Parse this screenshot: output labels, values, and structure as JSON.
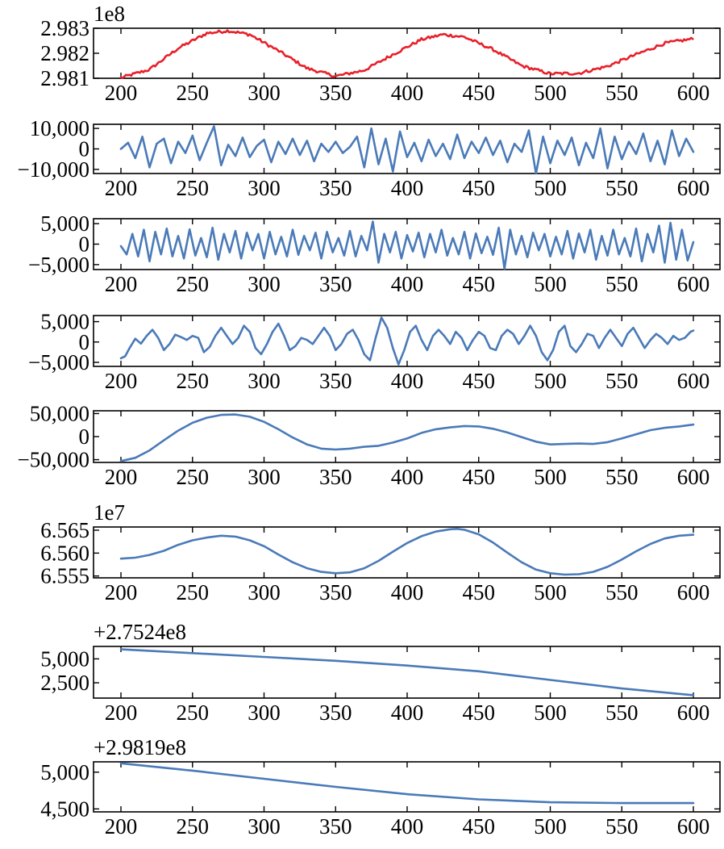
{
  "chart_data": [
    {
      "type": "line",
      "color": "#e8202a",
      "offset_text": "1e8",
      "xlim": [
        200,
        600
      ],
      "ylim": [
        2.981,
        2.983
      ],
      "xticks": [
        200,
        250,
        300,
        350,
        400,
        450,
        500,
        550,
        600
      ],
      "xtick_labels": [
        "200",
        "250",
        "300",
        "350",
        "400",
        "450",
        "500",
        "550",
        "600"
      ],
      "yticks": [
        2.981,
        2.982,
        2.983
      ],
      "ytick_labels": [
        "2.981",
        "2.982",
        "2.983"
      ],
      "noise": 6e-05,
      "x": [
        200,
        220,
        240,
        260,
        275,
        290,
        310,
        330,
        350,
        370,
        390,
        410,
        425,
        440,
        460,
        480,
        500,
        520,
        540,
        560,
        580,
        600
      ],
      "y": [
        2.98102,
        2.98135,
        2.9822,
        2.9828,
        2.9829,
        2.98275,
        2.9821,
        2.9814,
        2.98108,
        2.98132,
        2.98195,
        2.98255,
        2.98275,
        2.98265,
        2.98215,
        2.9815,
        2.98118,
        2.9812,
        2.98148,
        2.98195,
        2.9824,
        2.98258
      ]
    },
    {
      "type": "line",
      "color": "#4a7ab8",
      "offset_text": "",
      "xlim": [
        200,
        600
      ],
      "ylim": [
        -12000,
        12000
      ],
      "xticks": [
        200,
        250,
        300,
        350,
        400,
        450,
        500,
        550,
        600
      ],
      "xtick_labels": [
        "200",
        "250",
        "300",
        "350",
        "400",
        "450",
        "500",
        "550",
        "600"
      ],
      "yticks": [
        -10000,
        0,
        10000
      ],
      "ytick_labels": [
        "−10,000",
        "0",
        "10,000"
      ],
      "x": [
        200,
        205,
        210,
        215,
        220,
        225,
        230,
        235,
        240,
        245,
        250,
        255,
        260,
        265,
        270,
        275,
        280,
        285,
        290,
        295,
        300,
        305,
        310,
        315,
        320,
        325,
        330,
        335,
        340,
        345,
        350,
        355,
        360,
        365,
        370,
        375,
        380,
        385,
        390,
        395,
        400,
        405,
        410,
        415,
        420,
        425,
        430,
        435,
        440,
        445,
        450,
        455,
        460,
        465,
        470,
        475,
        480,
        485,
        490,
        495,
        500,
        505,
        510,
        515,
        520,
        525,
        530,
        535,
        540,
        545,
        550,
        555,
        560,
        565,
        570,
        575,
        580,
        585,
        590,
        595,
        600
      ],
      "y": [
        0,
        3000,
        -4500,
        6000,
        -9000,
        2500,
        5000,
        -7000,
        3500,
        -2000,
        6500,
        -5500,
        3000,
        11000,
        -8000,
        2000,
        -3500,
        5500,
        -4000,
        1500,
        4500,
        -6500,
        3500,
        -2500,
        5000,
        -3000,
        4000,
        -6000,
        2500,
        -1500,
        3500,
        -2000,
        1000,
        6000,
        -9000,
        10000,
        -7500,
        5000,
        -11000,
        8500,
        -4000,
        3000,
        -6000,
        4500,
        -3500,
        2500,
        -5000,
        7000,
        -4500,
        3500,
        -2000,
        5500,
        -3000,
        4000,
        -6500,
        2500,
        -1500,
        9000,
        -12000,
        6000,
        -7000,
        4000,
        -3000,
        5500,
        -8000,
        3000,
        -4500,
        10000,
        -9500,
        6000,
        -5000,
        3500,
        -2500,
        7500,
        -6000,
        4000,
        -7500,
        9000,
        -3500,
        5000,
        -1500
      ]
    },
    {
      "type": "line",
      "color": "#4a7ab8",
      "offset_text": "",
      "xlim": [
        200,
        600
      ],
      "ylim": [
        -6200,
        6200
      ],
      "xticks": [
        200,
        250,
        300,
        350,
        400,
        450,
        500,
        550,
        600
      ],
      "xtick_labels": [
        "200",
        "250",
        "300",
        "350",
        "400",
        "450",
        "500",
        "550",
        "600"
      ],
      "yticks": [
        -5000,
        0,
        5000
      ],
      "ytick_labels": [
        "−5,000",
        "0",
        "5,000"
      ],
      "x": [
        200,
        204,
        208,
        212,
        216,
        220,
        224,
        228,
        232,
        236,
        240,
        244,
        248,
        252,
        256,
        260,
        264,
        268,
        272,
        276,
        280,
        284,
        288,
        292,
        296,
        300,
        304,
        308,
        312,
        316,
        320,
        324,
        328,
        332,
        336,
        340,
        344,
        348,
        352,
        356,
        360,
        364,
        368,
        372,
        376,
        380,
        384,
        388,
        392,
        396,
        400,
        404,
        408,
        412,
        416,
        420,
        424,
        428,
        432,
        436,
        440,
        444,
        448,
        452,
        456,
        460,
        464,
        468,
        472,
        476,
        480,
        484,
        488,
        492,
        496,
        500,
        504,
        508,
        512,
        516,
        520,
        524,
        528,
        532,
        536,
        540,
        544,
        548,
        552,
        556,
        560,
        564,
        568,
        572,
        576,
        580,
        584,
        588,
        592,
        596,
        600
      ],
      "y": [
        -500,
        -2500,
        2500,
        -3000,
        3500,
        -4200,
        3000,
        -2500,
        3800,
        -3000,
        2000,
        -3500,
        3600,
        -2800,
        1500,
        -3200,
        4000,
        -3800,
        2500,
        -2000,
        3200,
        -3500,
        2800,
        -1500,
        2500,
        -3500,
        3000,
        -2500,
        1800,
        -3000,
        3500,
        -2600,
        2000,
        -1500,
        2800,
        -3500,
        3000,
        -2000,
        1500,
        -2800,
        3200,
        -3000,
        2000,
        -1500,
        5500,
        -4500,
        2500,
        -2000,
        3000,
        -3500,
        2200,
        -1800,
        2800,
        -3200,
        2500,
        -2000,
        3500,
        -2800,
        1500,
        -2500,
        3000,
        -3500,
        2600,
        -2200,
        1800,
        -2600,
        4000,
        -6000,
        3500,
        -2500,
        2000,
        -3200,
        2800,
        -1500,
        2500,
        -3000,
        1800,
        -2500,
        3200,
        -3500,
        2600,
        -2000,
        3500,
        -3800,
        2000,
        -2800,
        3500,
        -2500,
        1500,
        -3000,
        3800,
        -4200,
        2500,
        -2000,
        4500,
        -4500,
        5200,
        -3800,
        3500,
        -4000,
        500
      ]
    },
    {
      "type": "line",
      "color": "#4a7ab8",
      "offset_text": "",
      "xlim": [
        200,
        600
      ],
      "ylim": [
        -6000,
        6500
      ],
      "xticks": [
        200,
        250,
        300,
        350,
        400,
        450,
        500,
        550,
        600
      ],
      "xtick_labels": [
        "200",
        "250",
        "300",
        "350",
        "400",
        "450",
        "500",
        "550",
        "600"
      ],
      "yticks": [
        -5000,
        0,
        5000
      ],
      "ytick_labels": [
        "−5,000",
        "0",
        "5,000"
      ],
      "x": [
        200,
        203,
        206,
        210,
        214,
        218,
        222,
        226,
        230,
        234,
        238,
        242,
        246,
        250,
        254,
        258,
        262,
        266,
        270,
        274,
        278,
        282,
        286,
        290,
        294,
        298,
        302,
        306,
        310,
        314,
        318,
        322,
        326,
        330,
        334,
        338,
        342,
        346,
        350,
        354,
        358,
        362,
        366,
        370,
        374,
        378,
        382,
        386,
        390,
        394,
        398,
        402,
        406,
        410,
        414,
        418,
        422,
        426,
        430,
        434,
        438,
        442,
        446,
        450,
        454,
        458,
        462,
        466,
        470,
        474,
        478,
        482,
        486,
        490,
        494,
        498,
        502,
        506,
        510,
        514,
        518,
        522,
        526,
        530,
        534,
        538,
        542,
        546,
        550,
        554,
        558,
        562,
        566,
        570,
        574,
        578,
        582,
        586,
        590,
        594,
        598,
        600
      ],
      "y": [
        -4000,
        -3500,
        -1500,
        800,
        -400,
        1500,
        3000,
        1000,
        -2000,
        -500,
        1800,
        1200,
        500,
        1500,
        1000,
        -2500,
        -1200,
        1500,
        3500,
        1500,
        -500,
        1000,
        4000,
        2500,
        -1500,
        -3000,
        -500,
        2500,
        4500,
        1500,
        -2000,
        -1000,
        1000,
        500,
        -500,
        1500,
        3500,
        1500,
        -2000,
        -500,
        2000,
        3000,
        500,
        -3000,
        -4500,
        1000,
        6000,
        3500,
        -1500,
        -5500,
        -2000,
        2500,
        4000,
        500,
        -2000,
        1500,
        3000,
        1500,
        -500,
        2500,
        1000,
        -2000,
        500,
        2500,
        1500,
        -1500,
        -2000,
        1500,
        3000,
        2000,
        -500,
        1500,
        4000,
        1500,
        -2500,
        -4500,
        -2000,
        2500,
        4000,
        -1000,
        -2500,
        -500,
        2000,
        1500,
        -1500,
        1000,
        3000,
        1000,
        -1000,
        2000,
        3500,
        1000,
        -1500,
        500,
        2000,
        1000,
        -500,
        1500,
        500,
        1000,
        2500,
        2800
      ]
    },
    {
      "type": "line",
      "color": "#4a7ab8",
      "offset_text": "",
      "xlim": [
        200,
        600
      ],
      "ylim": [
        -56000,
        56000
      ],
      "xticks": [
        200,
        250,
        300,
        350,
        400,
        450,
        500,
        550,
        600
      ],
      "xtick_labels": [
        "200",
        "250",
        "300",
        "350",
        "400",
        "450",
        "500",
        "550",
        "600"
      ],
      "yticks": [
        -50000,
        0,
        50000
      ],
      "ytick_labels": [
        "−50,000",
        "0",
        "50,000"
      ],
      "x": [
        200,
        210,
        220,
        230,
        240,
        250,
        260,
        270,
        280,
        290,
        300,
        310,
        320,
        330,
        340,
        350,
        360,
        370,
        380,
        390,
        400,
        410,
        420,
        430,
        440,
        450,
        460,
        470,
        480,
        490,
        500,
        510,
        520,
        530,
        540,
        550,
        560,
        570,
        580,
        590,
        600
      ],
      "y": [
        -53000,
        -46000,
        -30000,
        -8000,
        13000,
        30000,
        41000,
        47000,
        48000,
        43000,
        32000,
        16000,
        -2000,
        -17000,
        -26000,
        -28000,
        -26000,
        -22000,
        -20000,
        -13000,
        -4000,
        8000,
        16000,
        20000,
        23000,
        22000,
        17000,
        9000,
        -1000,
        -11000,
        -17000,
        -16000,
        -15000,
        -16000,
        -12000,
        -4000,
        5000,
        14000,
        19000,
        22000,
        26000
      ]
    },
    {
      "type": "line",
      "color": "#4a7ab8",
      "offset_text": "1e7",
      "xlim": [
        200,
        600
      ],
      "ylim": [
        6.5546,
        6.5657
      ],
      "xticks": [
        200,
        250,
        300,
        350,
        400,
        450,
        500,
        550,
        600
      ],
      "xtick_labels": [
        "200",
        "250",
        "300",
        "350",
        "400",
        "450",
        "500",
        "550",
        "600"
      ],
      "yticks": [
        6.555,
        6.56,
        6.565
      ],
      "ytick_labels": [
        "6.555",
        "6.560",
        "6.565"
      ],
      "x": [
        200,
        210,
        220,
        230,
        240,
        250,
        260,
        270,
        280,
        290,
        300,
        310,
        320,
        330,
        340,
        350,
        360,
        370,
        380,
        390,
        400,
        410,
        420,
        430,
        435,
        440,
        450,
        460,
        470,
        480,
        490,
        500,
        510,
        520,
        530,
        540,
        550,
        560,
        570,
        580,
        590,
        600
      ],
      "y": [
        6.5588,
        6.559,
        6.5596,
        6.5605,
        6.5618,
        6.5628,
        6.5634,
        6.5638,
        6.5636,
        6.5628,
        6.5615,
        6.5597,
        6.558,
        6.5567,
        6.5559,
        6.5556,
        6.5558,
        6.5567,
        6.5583,
        6.5603,
        6.5622,
        6.5637,
        6.5647,
        6.5652,
        6.5653,
        6.5651,
        6.5641,
        6.5623,
        6.5601,
        6.558,
        6.5564,
        6.5556,
        6.5553,
        6.5554,
        6.5559,
        6.557,
        6.5586,
        6.5604,
        6.562,
        6.5632,
        6.5638,
        6.564
      ]
    },
    {
      "type": "line",
      "color": "#4a7ab8",
      "offset_text": "+2.7524e8",
      "xlim": [
        200,
        600
      ],
      "ylim": [
        900,
        6300
      ],
      "xticks": [
        200,
        250,
        300,
        350,
        400,
        450,
        500,
        550,
        600
      ],
      "xtick_labels": [
        "200",
        "250",
        "300",
        "350",
        "400",
        "450",
        "500",
        "550",
        "600"
      ],
      "yticks": [
        2500,
        5000
      ],
      "ytick_labels": [
        "2,500",
        "5,000"
      ],
      "x": [
        200,
        250,
        300,
        350,
        400,
        450,
        500,
        550,
        600
      ],
      "y": [
        6000,
        5600,
        5200,
        4800,
        4300,
        3700,
        2800,
        1900,
        1200
      ]
    },
    {
      "type": "line",
      "color": "#4a7ab8",
      "offset_text": "+2.9819e8",
      "xlim": [
        200,
        600
      ],
      "ylim": [
        4460,
        5140
      ],
      "xticks": [
        200,
        250,
        300,
        350,
        400,
        450,
        500,
        550,
        600
      ],
      "xtick_labels": [
        "200",
        "250",
        "300",
        "350",
        "400",
        "450",
        "500",
        "550",
        "600"
      ],
      "yticks": [
        4500,
        5000
      ],
      "ytick_labels": [
        "4,500",
        "5,000"
      ],
      "x": [
        200,
        250,
        300,
        350,
        400,
        450,
        500,
        550,
        600
      ],
      "y": [
        5120,
        5020,
        4910,
        4800,
        4700,
        4630,
        4590,
        4580,
        4580
      ]
    }
  ]
}
